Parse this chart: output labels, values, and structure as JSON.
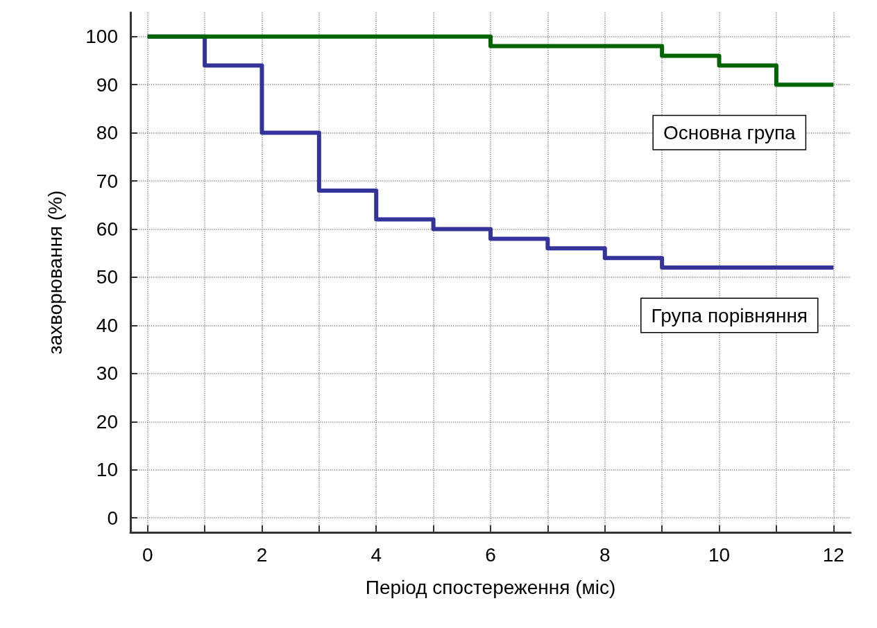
{
  "chart_data": {
    "type": "step",
    "xlabel": "Період спостереження (міс)",
    "ylabel": "захворювання (%)",
    "xlim": [
      -0.3,
      12.3
    ],
    "ylim": [
      -3,
      105
    ],
    "xticks": [
      0,
      {
        "value": 1,
        "label": null
      },
      2,
      {
        "value": 3,
        "label": null
      },
      4,
      {
        "value": 5,
        "label": null
      },
      6,
      {
        "value": 7,
        "label": null
      },
      8,
      {
        "value": 9,
        "label": null
      },
      10,
      {
        "value": 11,
        "label": null
      },
      12
    ],
    "yticks": [
      0,
      10,
      20,
      30,
      40,
      50,
      60,
      70,
      80,
      90,
      100
    ],
    "grid": true,
    "legend": false,
    "line_style": "solid",
    "marker": "none",
    "series": [
      {
        "name": "Основна група",
        "color": "#006400",
        "x": [
          0,
          6,
          9,
          10,
          11,
          12
        ],
        "values": [
          100,
          98,
          96,
          94,
          90,
          90
        ]
      },
      {
        "name": "Група порівняння",
        "color": "#333399",
        "x": [
          0,
          1,
          2,
          3,
          4,
          5,
          6,
          7,
          8,
          9,
          12
        ],
        "values": [
          100,
          94,
          80,
          68,
          62,
          60,
          58,
          56,
          54,
          52,
          52
        ]
      }
    ]
  }
}
